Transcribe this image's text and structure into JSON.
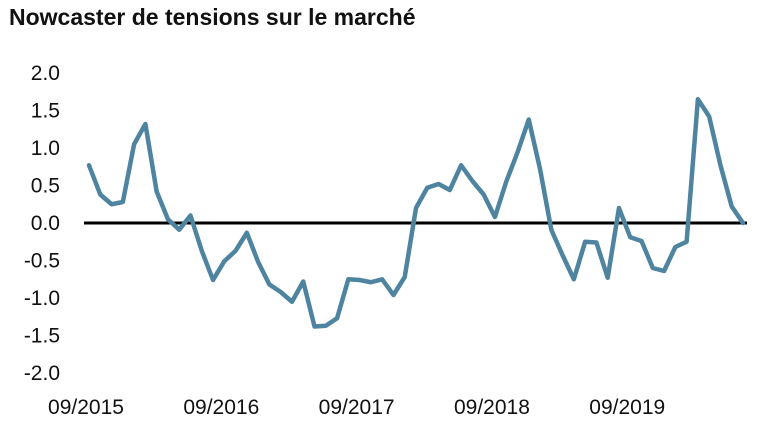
{
  "chart_data": {
    "type": "line",
    "title": "Nowcaster de tensions sur le marché",
    "xlabel": "",
    "ylabel": "",
    "ylim": [
      -2.0,
      2.0
    ],
    "yticks": [
      "2.0",
      "1.5",
      "1.0",
      "0.5",
      "0.0",
      "-0.5",
      "-1.0",
      "-1.5",
      "-2.0"
    ],
    "xticks": [
      "09/2015",
      "09/2016",
      "09/2017",
      "09/2018",
      "09/2019"
    ],
    "x_start": "2015-09",
    "frequency": "monthly",
    "grid": false,
    "legend": "none",
    "zero_line": true,
    "line_color": "#4e84a0",
    "series": [
      {
        "values": [
          0.77,
          0.38,
          0.25,
          0.28,
          1.05,
          1.32,
          0.42,
          0.05,
          -0.09,
          0.1,
          -0.37,
          -0.76,
          -0.51,
          -0.37,
          -0.13,
          -0.52,
          -0.82,
          -0.92,
          -1.05,
          -0.78,
          -1.38,
          -1.37,
          -1.27,
          -0.75,
          -0.76,
          -0.79,
          -0.75,
          -0.96,
          -0.72,
          0.2,
          0.47,
          0.52,
          0.44,
          0.77,
          0.56,
          0.38,
          0.08,
          0.55,
          0.94,
          1.38,
          0.72,
          -0.09,
          -0.43,
          -0.75,
          -0.25,
          -0.26,
          -0.73,
          0.2,
          -0.19,
          -0.24,
          -0.6,
          -0.64,
          -0.32,
          -0.25,
          1.65,
          1.42,
          0.77,
          0.22,
          0.0
        ]
      }
    ]
  }
}
